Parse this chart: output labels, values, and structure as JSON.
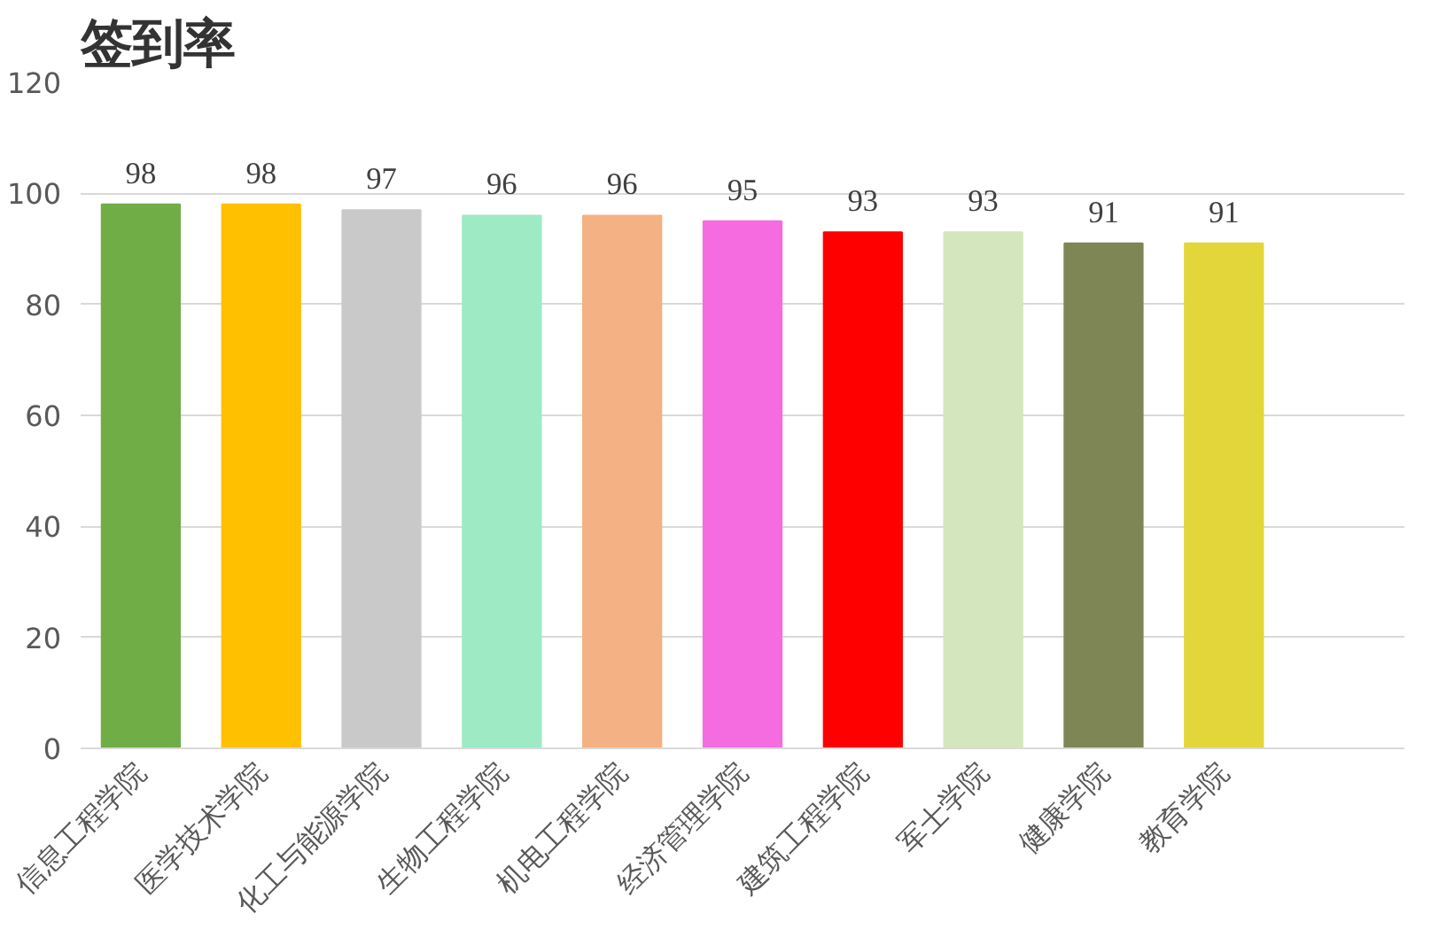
{
  "chart_data": {
    "type": "bar",
    "title": "签到率",
    "categories": [
      "信息工程学院",
      "医学技术学院",
      "化工与能源学院",
      "生物工程学院",
      "机电工程学院",
      "经济管理学院",
      "建筑工程学院",
      "军士学院",
      "健康学院",
      "教育学院",
      null
    ],
    "values": [
      98,
      98,
      97,
      96,
      96,
      95,
      93,
      93,
      91,
      91,
      null
    ],
    "colors": [
      "#70ad47",
      "#ffc000",
      "#c9c9c9",
      "#9eeac4",
      "#f4b183",
      "#f46ce0",
      "#ff0000",
      "#d4e6bd",
      "#7e8656",
      "#e2d63a",
      "#000000"
    ],
    "ylim": [
      0,
      120
    ],
    "yticks": [
      0,
      20,
      40,
      60,
      80,
      100,
      120
    ],
    "grid": "y",
    "data_labels": true
  }
}
